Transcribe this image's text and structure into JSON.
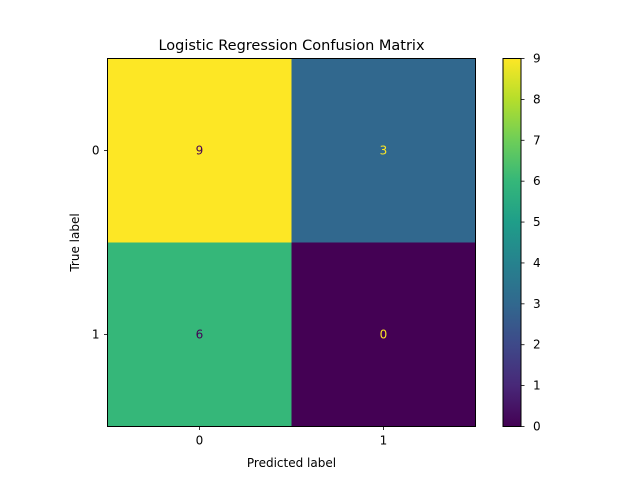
{
  "chart_data": {
    "type": "heatmap",
    "title": "Logistic Regression Confusion Matrix",
    "xlabel": "Predicted label",
    "ylabel": "True label",
    "x_categories": [
      "0",
      "1"
    ],
    "y_categories": [
      "0",
      "1"
    ],
    "values": [
      [
        9,
        3
      ],
      [
        6,
        0
      ]
    ],
    "colormap": "viridis",
    "colorbar": {
      "range": [
        0,
        9
      ],
      "ticks": [
        "0",
        "1",
        "2",
        "3",
        "4",
        "5",
        "6",
        "7",
        "8",
        "9"
      ]
    },
    "colors": {
      "cell_0_0": "#fde725",
      "cell_0_1": "#31688e",
      "cell_1_0": "#35b779",
      "cell_1_1": "#440154",
      "text_on_light": "#440154",
      "text_on_dark": "#fde725"
    }
  }
}
